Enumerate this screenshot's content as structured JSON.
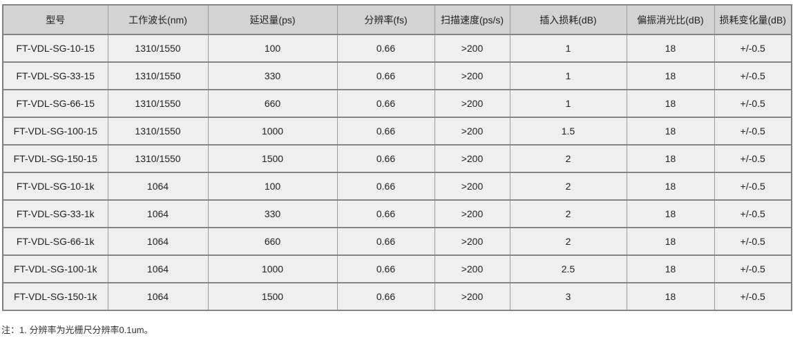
{
  "table": {
    "columns": [
      "型号",
      "工作波长(nm)",
      "延迟量(ps)",
      "分辨率(fs)",
      "扫描速度(ps/s)",
      "插入损耗(dB)",
      "偏振消光比(dB)",
      "损耗变化量(dB)"
    ],
    "rows": [
      [
        "FT-VDL-SG-10-15",
        "1310/1550",
        "100",
        "0.66",
        ">200",
        "1",
        "18",
        "+/-0.5"
      ],
      [
        "FT-VDL-SG-33-15",
        "1310/1550",
        "330",
        "0.66",
        ">200",
        "1",
        "18",
        "+/-0.5"
      ],
      [
        "FT-VDL-SG-66-15",
        "1310/1550",
        "660",
        "0.66",
        ">200",
        "1",
        "18",
        "+/-0.5"
      ],
      [
        "FT-VDL-SG-100-15",
        "1310/1550",
        "1000",
        "0.66",
        ">200",
        "1.5",
        "18",
        "+/-0.5"
      ],
      [
        "FT-VDL-SG-150-15",
        "1310/1550",
        "1500",
        "0.66",
        ">200",
        "2",
        "18",
        "+/-0.5"
      ],
      [
        "FT-VDL-SG-10-1k",
        "1064",
        "100",
        "0.66",
        ">200",
        "2",
        "18",
        "+/-0.5"
      ],
      [
        "FT-VDL-SG-33-1k",
        "1064",
        "330",
        "0.66",
        ">200",
        "2",
        "18",
        "+/-0.5"
      ],
      [
        "FT-VDL-SG-66-1k",
        "1064",
        "660",
        "0.66",
        ">200",
        "2",
        "18",
        "+/-0.5"
      ],
      [
        "FT-VDL-SG-100-1k",
        "1064",
        "1000",
        "0.66",
        ">200",
        "2.5",
        "18",
        "+/-0.5"
      ],
      [
        "FT-VDL-SG-150-1k",
        "1064",
        "1500",
        "0.66",
        ">200",
        "3",
        "18",
        "+/-0.5"
      ]
    ]
  },
  "note": "注：1. 分辨率为光栅尺分辨率0.1um。",
  "colors": {
    "header_bg": "#d3d3d3",
    "row_bg": "#efefef",
    "border_outer": "#7d7d7d",
    "border_horizontal": "#848484",
    "border_vertical": "#9a9a9a",
    "text": "#202020"
  }
}
